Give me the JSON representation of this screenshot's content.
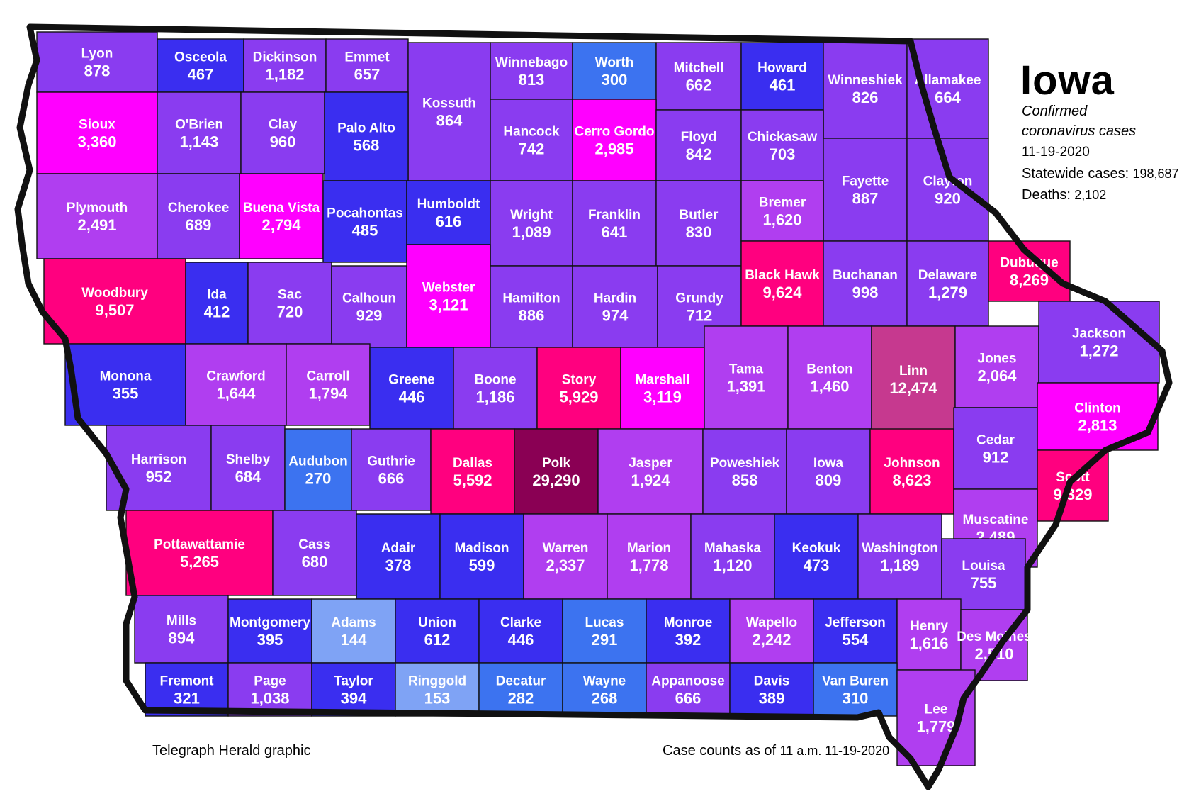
{
  "legend": {
    "title": "Iowa",
    "subtitle_line1": "Confirmed",
    "subtitle_line2": "coronavirus cases",
    "date": "11-19-2020",
    "statewide_label": "Statewide cases:",
    "statewide_value": "198,687",
    "deaths_label": "Deaths:",
    "deaths_value": "2,102"
  },
  "footer": {
    "credit": "Telegraph Herald graphic",
    "asof_label": "Case counts as of",
    "asof_value": "11 a.m. 11-19-2020"
  },
  "colors": {
    "outline": "#111111",
    "light_blue": "#7fa3f5",
    "mid_blue": "#3c73f0",
    "blue": "#2d2cf0",
    "blue_purple": "#4b32ea",
    "purple": "#8a3cf0",
    "violet": "#b03ef0",
    "magenta": "#ff00ff",
    "hot_pink": "#ff007f",
    "mauve": "#c6398f",
    "dark_maroon": "#8a0054"
  },
  "counties": [
    {
      "name": "Lyon",
      "value": "878",
      "color": "#8a3cf0"
    },
    {
      "name": "Osceola",
      "value": "467",
      "color": "#3a2ef0"
    },
    {
      "name": "Dickinson",
      "value": "1,182",
      "color": "#8a3cf0"
    },
    {
      "name": "Emmet",
      "value": "657",
      "color": "#8a3cf0"
    },
    {
      "name": "Kossuth",
      "value": "864",
      "color": "#8a3cf0"
    },
    {
      "name": "Winnebago",
      "value": "813",
      "color": "#8a3cf0"
    },
    {
      "name": "Worth",
      "value": "300",
      "color": "#3c73f0"
    },
    {
      "name": "Mitchell",
      "value": "662",
      "color": "#8a3cf0"
    },
    {
      "name": "Howard",
      "value": "461",
      "color": "#3a2ef0"
    },
    {
      "name": "Winneshiek",
      "value": "826",
      "color": "#8a3cf0"
    },
    {
      "name": "Allamakee",
      "value": "664",
      "color": "#8a3cf0"
    },
    {
      "name": "Sioux",
      "value": "3,360",
      "color": "#ff00ff"
    },
    {
      "name": "O'Brien",
      "value": "1,143",
      "color": "#8a3cf0"
    },
    {
      "name": "Clay",
      "value": "960",
      "color": "#8a3cf0"
    },
    {
      "name": "Palo Alto",
      "value": "568",
      "color": "#3a2ef0"
    },
    {
      "name": "Hancock",
      "value": "742",
      "color": "#8a3cf0"
    },
    {
      "name": "Cerro Gordo",
      "value": "2,985",
      "color": "#ff00ff"
    },
    {
      "name": "Floyd",
      "value": "842",
      "color": "#8a3cf0"
    },
    {
      "name": "Chickasaw",
      "value": "703",
      "color": "#8a3cf0"
    },
    {
      "name": "Fayette",
      "value": "887",
      "color": "#8a3cf0"
    },
    {
      "name": "Clayton",
      "value": "920",
      "color": "#8a3cf0"
    },
    {
      "name": "Plymouth",
      "value": "2,491",
      "color": "#b03ef0"
    },
    {
      "name": "Cherokee",
      "value": "689",
      "color": "#8a3cf0"
    },
    {
      "name": "Buena Vista",
      "value": "2,794",
      "color": "#ff00ff"
    },
    {
      "name": "Pocahontas",
      "value": "485",
      "color": "#3a2ef0"
    },
    {
      "name": "Humboldt",
      "value": "616",
      "color": "#3a2ef0"
    },
    {
      "name": "Wright",
      "value": "1,089",
      "color": "#8a3cf0"
    },
    {
      "name": "Franklin",
      "value": "641",
      "color": "#8a3cf0"
    },
    {
      "name": "Butler",
      "value": "830",
      "color": "#8a3cf0"
    },
    {
      "name": "Bremer",
      "value": "1,620",
      "color": "#b03ef0"
    },
    {
      "name": "Woodbury",
      "value": "9,507",
      "color": "#ff007f"
    },
    {
      "name": "Ida",
      "value": "412",
      "color": "#3a2ef0"
    },
    {
      "name": "Sac",
      "value": "720",
      "color": "#8a3cf0"
    },
    {
      "name": "Calhoun",
      "value": "929",
      "color": "#8a3cf0"
    },
    {
      "name": "Webster",
      "value": "3,121",
      "color": "#ff00ff"
    },
    {
      "name": "Hamilton",
      "value": "886",
      "color": "#8a3cf0"
    },
    {
      "name": "Hardin",
      "value": "974",
      "color": "#8a3cf0"
    },
    {
      "name": "Grundy",
      "value": "712",
      "color": "#8a3cf0"
    },
    {
      "name": "Black Hawk",
      "value": "9,624",
      "color": "#ff007f"
    },
    {
      "name": "Buchanan",
      "value": "998",
      "color": "#8a3cf0"
    },
    {
      "name": "Delaware",
      "value": "1,279",
      "color": "#8a3cf0"
    },
    {
      "name": "Dubuque",
      "value": "8,269",
      "color": "#ff007f"
    },
    {
      "name": "Monona",
      "value": "355",
      "color": "#3a2ef0"
    },
    {
      "name": "Crawford",
      "value": "1,644",
      "color": "#b03ef0"
    },
    {
      "name": "Carroll",
      "value": "1,794",
      "color": "#b03ef0"
    },
    {
      "name": "Greene",
      "value": "446",
      "color": "#3a2ef0"
    },
    {
      "name": "Boone",
      "value": "1,186",
      "color": "#8a3cf0"
    },
    {
      "name": "Story",
      "value": "5,929",
      "color": "#ff007f"
    },
    {
      "name": "Marshall",
      "value": "3,119",
      "color": "#ff00ff"
    },
    {
      "name": "Tama",
      "value": "1,391",
      "color": "#b03ef0"
    },
    {
      "name": "Benton",
      "value": "1,460",
      "color": "#b03ef0"
    },
    {
      "name": "Linn",
      "value": "12,474",
      "color": "#c6398f"
    },
    {
      "name": "Jones",
      "value": "2,064",
      "color": "#b03ef0"
    },
    {
      "name": "Jackson",
      "value": "1,272",
      "color": "#8a3cf0"
    },
    {
      "name": "Harrison",
      "value": "952",
      "color": "#8a3cf0"
    },
    {
      "name": "Shelby",
      "value": "684",
      "color": "#8a3cf0"
    },
    {
      "name": "Audubon",
      "value": "270",
      "color": "#3c73f0"
    },
    {
      "name": "Guthrie",
      "value": "666",
      "color": "#8a3cf0"
    },
    {
      "name": "Dallas",
      "value": "5,592",
      "color": "#ff007f"
    },
    {
      "name": "Polk",
      "value": "29,290",
      "color": "#8a0054"
    },
    {
      "name": "Jasper",
      "value": "1,924",
      "color": "#b03ef0"
    },
    {
      "name": "Poweshiek",
      "value": "858",
      "color": "#8a3cf0"
    },
    {
      "name": "Iowa",
      "value": "809",
      "color": "#8a3cf0"
    },
    {
      "name": "Johnson",
      "value": "8,623",
      "color": "#ff007f"
    },
    {
      "name": "Cedar",
      "value": "912",
      "color": "#8a3cf0"
    },
    {
      "name": "Clinton",
      "value": "2,813",
      "color": "#ff00ff"
    },
    {
      "name": "Scott",
      "value": "9,329",
      "color": "#ff007f"
    },
    {
      "name": "Muscatine",
      "value": "2,489",
      "color": "#b03ef0"
    },
    {
      "name": "Pottawattamie",
      "value": "5,265",
      "color": "#ff007f"
    },
    {
      "name": "Cass",
      "value": "680",
      "color": "#8a3cf0"
    },
    {
      "name": "Adair",
      "value": "378",
      "color": "#3a2ef0"
    },
    {
      "name": "Madison",
      "value": "599",
      "color": "#3a2ef0"
    },
    {
      "name": "Warren",
      "value": "2,337",
      "color": "#b03ef0"
    },
    {
      "name": "Marion",
      "value": "1,778",
      "color": "#b03ef0"
    },
    {
      "name": "Mahaska",
      "value": "1,120",
      "color": "#8a3cf0"
    },
    {
      "name": "Keokuk",
      "value": "473",
      "color": "#3a2ef0"
    },
    {
      "name": "Washington",
      "value": "1,189",
      "color": "#8a3cf0"
    },
    {
      "name": "Louisa",
      "value": "755",
      "color": "#8a3cf0"
    },
    {
      "name": "Mills",
      "value": "894",
      "color": "#8a3cf0"
    },
    {
      "name": "Montgomery",
      "value": "395",
      "color": "#3a2ef0"
    },
    {
      "name": "Adams",
      "value": "144",
      "color": "#7fa3f5"
    },
    {
      "name": "Union",
      "value": "612",
      "color": "#3a2ef0"
    },
    {
      "name": "Clarke",
      "value": "446",
      "color": "#3a2ef0"
    },
    {
      "name": "Lucas",
      "value": "291",
      "color": "#3c73f0"
    },
    {
      "name": "Monroe",
      "value": "392",
      "color": "#3a2ef0"
    },
    {
      "name": "Wapello",
      "value": "2,242",
      "color": "#b03ef0"
    },
    {
      "name": "Jefferson",
      "value": "554",
      "color": "#3a2ef0"
    },
    {
      "name": "Henry",
      "value": "1,616",
      "color": "#b03ef0"
    },
    {
      "name": "Des Moines",
      "value": "2,510",
      "color": "#b03ef0"
    },
    {
      "name": "Fremont",
      "value": "321",
      "color": "#3a2ef0"
    },
    {
      "name": "Page",
      "value": "1,038",
      "color": "#8a3cf0"
    },
    {
      "name": "Taylor",
      "value": "394",
      "color": "#3a2ef0"
    },
    {
      "name": "Ringgold",
      "value": "153",
      "color": "#7fa3f5"
    },
    {
      "name": "Decatur",
      "value": "282",
      "color": "#3c73f0"
    },
    {
      "name": "Wayne",
      "value": "268",
      "color": "#3c73f0"
    },
    {
      "name": "Appanoose",
      "value": "666",
      "color": "#8a3cf0"
    },
    {
      "name": "Davis",
      "value": "389",
      "color": "#3a2ef0"
    },
    {
      "name": "Van Buren",
      "value": "310",
      "color": "#3c73f0"
    },
    {
      "name": "Lee",
      "value": "1,779",
      "color": "#b03ef0"
    }
  ]
}
